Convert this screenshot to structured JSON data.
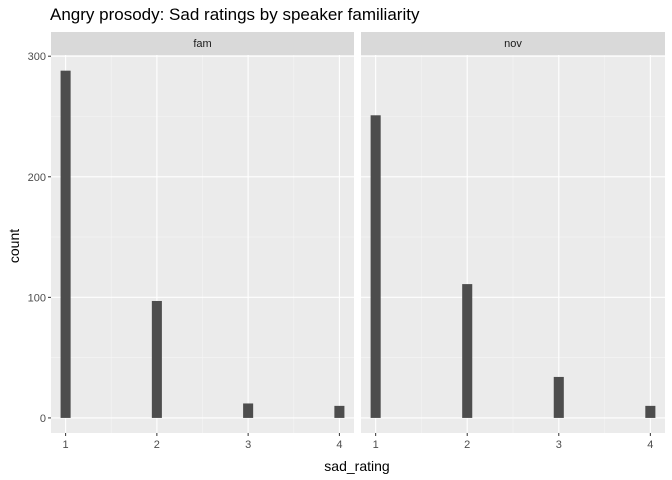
{
  "chart_data": {
    "type": "bar",
    "title": "Angry prosody: Sad ratings by speaker familiarity",
    "xlabel": "sad_rating",
    "ylabel": "count",
    "x_ticks": [
      1,
      2,
      3,
      4
    ],
    "y_ticks": [
      0,
      100,
      200,
      300
    ],
    "ylim": [
      0,
      300
    ],
    "grid": true,
    "facets": [
      {
        "name": "fam",
        "x": [
          1,
          2,
          3,
          4
        ],
        "values": [
          288,
          97,
          12,
          10
        ]
      },
      {
        "name": "nov",
        "x": [
          1,
          2,
          3,
          4
        ],
        "values": [
          251,
          111,
          34,
          10
        ]
      }
    ],
    "colors": {
      "bar": "#4d4d4d",
      "panel": "#ebebeb",
      "strip": "#d9d9d9"
    }
  }
}
